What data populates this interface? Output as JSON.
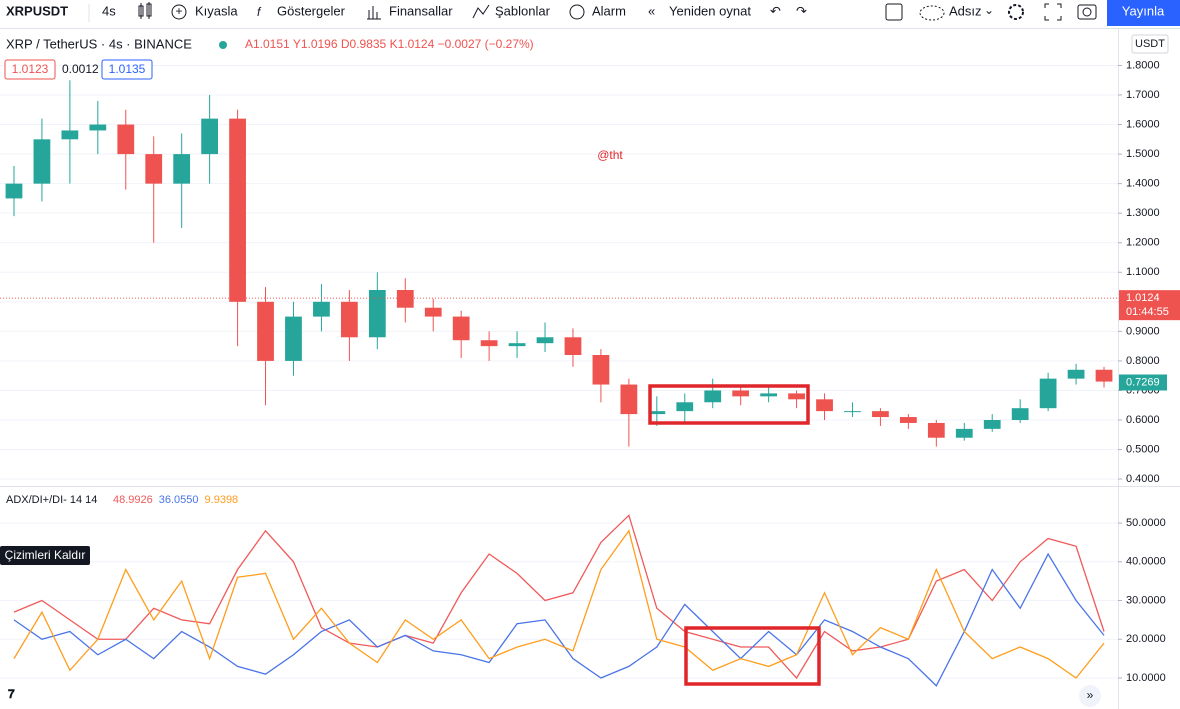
{
  "toolbar": {
    "symbol": "XRPUSDT",
    "interval": "4s",
    "items": [
      "Kıyasla",
      "Göstergeler",
      "Finansallar",
      "Şablonlar",
      "Alarm",
      "Yeniden oynat"
    ],
    "layout_name": "Adsız",
    "publish": "Yayınla"
  },
  "header": {
    "instrument": "XRP / TetherUS · 4s · BINANCE",
    "ohlc": "A1.0151 Y1.0196 D0.9835 K1.0124 −0.0027 (−0.27%)",
    "bid": "1.0123",
    "spread": "0.0012",
    "ask": "1.0135",
    "currency": "USDT"
  },
  "watermark": "@tht",
  "indicator_legend": {
    "title": "ADX/DI+/DI- 14 14"
  },
  "remove_drawings": "Çizimleri Kaldır",
  "chart_data": [
    {
      "type": "candlestick",
      "categories": [
        null,
        null,
        null,
        null,
        null,
        null,
        null,
        null,
        null,
        null,
        null,
        null,
        null,
        null,
        null,
        null,
        null,
        null,
        null,
        null,
        null,
        null,
        null,
        null,
        null,
        null,
        null,
        null,
        null,
        null,
        null,
        null,
        null,
        null,
        null,
        null,
        null,
        null,
        null,
        null
      ],
      "open": [
        1.35,
        1.4,
        1.55,
        1.58,
        1.6,
        1.5,
        1.4,
        1.5,
        1.62,
        1.0,
        0.8,
        0.95,
        1.0,
        0.88,
        1.04,
        0.98,
        0.95,
        0.87,
        0.85,
        0.86,
        0.88,
        0.82,
        0.72,
        0.62,
        0.63,
        0.66,
        0.7,
        0.68,
        0.69,
        0.67,
        0.63,
        0.63,
        0.61,
        0.59,
        0.54,
        0.57,
        0.6,
        0.64,
        0.74,
        0.77
      ],
      "high": [
        1.46,
        1.62,
        1.75,
        1.68,
        1.65,
        1.56,
        1.57,
        1.7,
        1.65,
        1.05,
        1.0,
        1.06,
        1.04,
        1.1,
        1.08,
        1.01,
        0.97,
        0.9,
        0.9,
        0.93,
        0.91,
        0.84,
        0.74,
        0.68,
        0.69,
        0.74,
        0.72,
        0.72,
        0.7,
        0.69,
        0.66,
        0.64,
        0.62,
        0.6,
        0.59,
        0.62,
        0.67,
        0.76,
        0.79,
        0.78
      ],
      "low": [
        1.29,
        1.34,
        1.4,
        1.5,
        1.38,
        1.2,
        1.25,
        1.4,
        0.85,
        0.65,
        0.75,
        0.9,
        0.8,
        0.84,
        0.93,
        0.9,
        0.81,
        0.8,
        0.81,
        0.83,
        0.78,
        0.66,
        0.51,
        0.58,
        0.59,
        0.64,
        0.65,
        0.66,
        0.64,
        0.6,
        0.61,
        0.58,
        0.57,
        0.51,
        0.53,
        0.56,
        0.59,
        0.63,
        0.72,
        0.71
      ],
      "close": [
        1.4,
        1.55,
        1.58,
        1.6,
        1.5,
        1.4,
        1.5,
        1.62,
        1.0,
        0.8,
        0.95,
        1.0,
        0.88,
        1.04,
        0.98,
        0.95,
        0.87,
        0.85,
        0.86,
        0.88,
        0.82,
        0.72,
        0.62,
        0.63,
        0.66,
        0.7,
        0.68,
        0.69,
        0.67,
        0.63,
        0.63,
        0.61,
        0.59,
        0.54,
        0.57,
        0.6,
        0.64,
        0.74,
        0.77,
        0.73
      ],
      "up_color": "#26a69a",
      "down_color": "#ef5350",
      "ylim": [
        0.38,
        1.92
      ],
      "yticks": [
        {
          "value": 0.4,
          "label": "0.4000"
        },
        {
          "value": 0.5,
          "label": "0.5000"
        },
        {
          "value": 0.6,
          "label": "0.6000"
        },
        {
          "value": 0.7,
          "label": "0.7000"
        },
        {
          "value": 0.8,
          "label": "0.8000"
        },
        {
          "value": 0.9,
          "label": "0.9000"
        },
        {
          "value": 1.0,
          "label": "1.0000"
        },
        {
          "value": 1.1,
          "label": "1.1000"
        },
        {
          "value": 1.2,
          "label": "1.2000"
        },
        {
          "value": 1.3,
          "label": "1.3000"
        },
        {
          "value": 1.4,
          "label": "1.4000"
        },
        {
          "value": 1.5,
          "label": "1.5000"
        },
        {
          "value": 1.6,
          "label": "1.6000"
        },
        {
          "value": 1.7,
          "label": "1.7000"
        },
        {
          "value": 1.8,
          "label": "1.8000"
        }
      ],
      "grid": true,
      "price_line": {
        "value": 1.0124,
        "label": "1.0124",
        "countdown": "01:44:55",
        "color": "#ef5350"
      },
      "last_tag": {
        "value": 0.7269,
        "label": "0.7269",
        "color": "#26a69a"
      }
    },
    {
      "type": "line",
      "categories": [
        null,
        null,
        null,
        null,
        null,
        null,
        null,
        null,
        null,
        null,
        null,
        null,
        null,
        null,
        null,
        null,
        null,
        null,
        null,
        null,
        null,
        null,
        null,
        null,
        null,
        null,
        null,
        null,
        null,
        null,
        null,
        null,
        null,
        null,
        null,
        null,
        null,
        null,
        null,
        null
      ],
      "series": [
        {
          "color": "#f05a5a",
          "legend_value": "48.9926",
          "values": [
            27,
            30,
            25,
            20,
            20,
            28,
            25,
            24,
            38,
            48,
            40,
            23,
            19,
            18,
            21,
            19,
            32,
            42,
            37,
            30,
            32,
            45,
            52,
            28,
            22,
            20,
            18,
            18,
            10,
            22,
            17,
            18,
            20,
            35,
            38,
            30,
            40,
            46,
            44,
            22
          ]
        },
        {
          "color": "#4a74e8",
          "legend_value": "36.0550",
          "values": [
            25,
            20,
            22,
            16,
            20,
            15,
            22,
            18,
            13,
            11,
            16,
            22,
            25,
            18,
            21,
            17,
            16,
            14,
            24,
            25,
            15,
            10,
            13,
            18,
            29,
            22,
            15,
            22,
            16,
            25,
            22,
            18,
            15,
            8,
            22,
            38,
            28,
            42,
            30,
            21
          ]
        },
        {
          "color": "#ff9d1c",
          "legend_value": "9.9398",
          "values": [
            15,
            27,
            12,
            20,
            38,
            25,
            35,
            15,
            36,
            37,
            20,
            28,
            19,
            14,
            25,
            20,
            25,
            15,
            18,
            20,
            17,
            38,
            48,
            20,
            18,
            12,
            15,
            13,
            16,
            32,
            16,
            23,
            20,
            38,
            22,
            15,
            18,
            15,
            10,
            19
          ]
        }
      ],
      "ylim": [
        2,
        59.3
      ],
      "yticks": [
        {
          "value": 10,
          "label": "10.0000"
        },
        {
          "value": 20,
          "label": "20.0000"
        },
        {
          "value": 30,
          "label": "30.0000"
        },
        {
          "value": 40,
          "label": "40.0000"
        },
        {
          "value": 50,
          "label": "50.0000"
        }
      ],
      "grid": true
    }
  ]
}
